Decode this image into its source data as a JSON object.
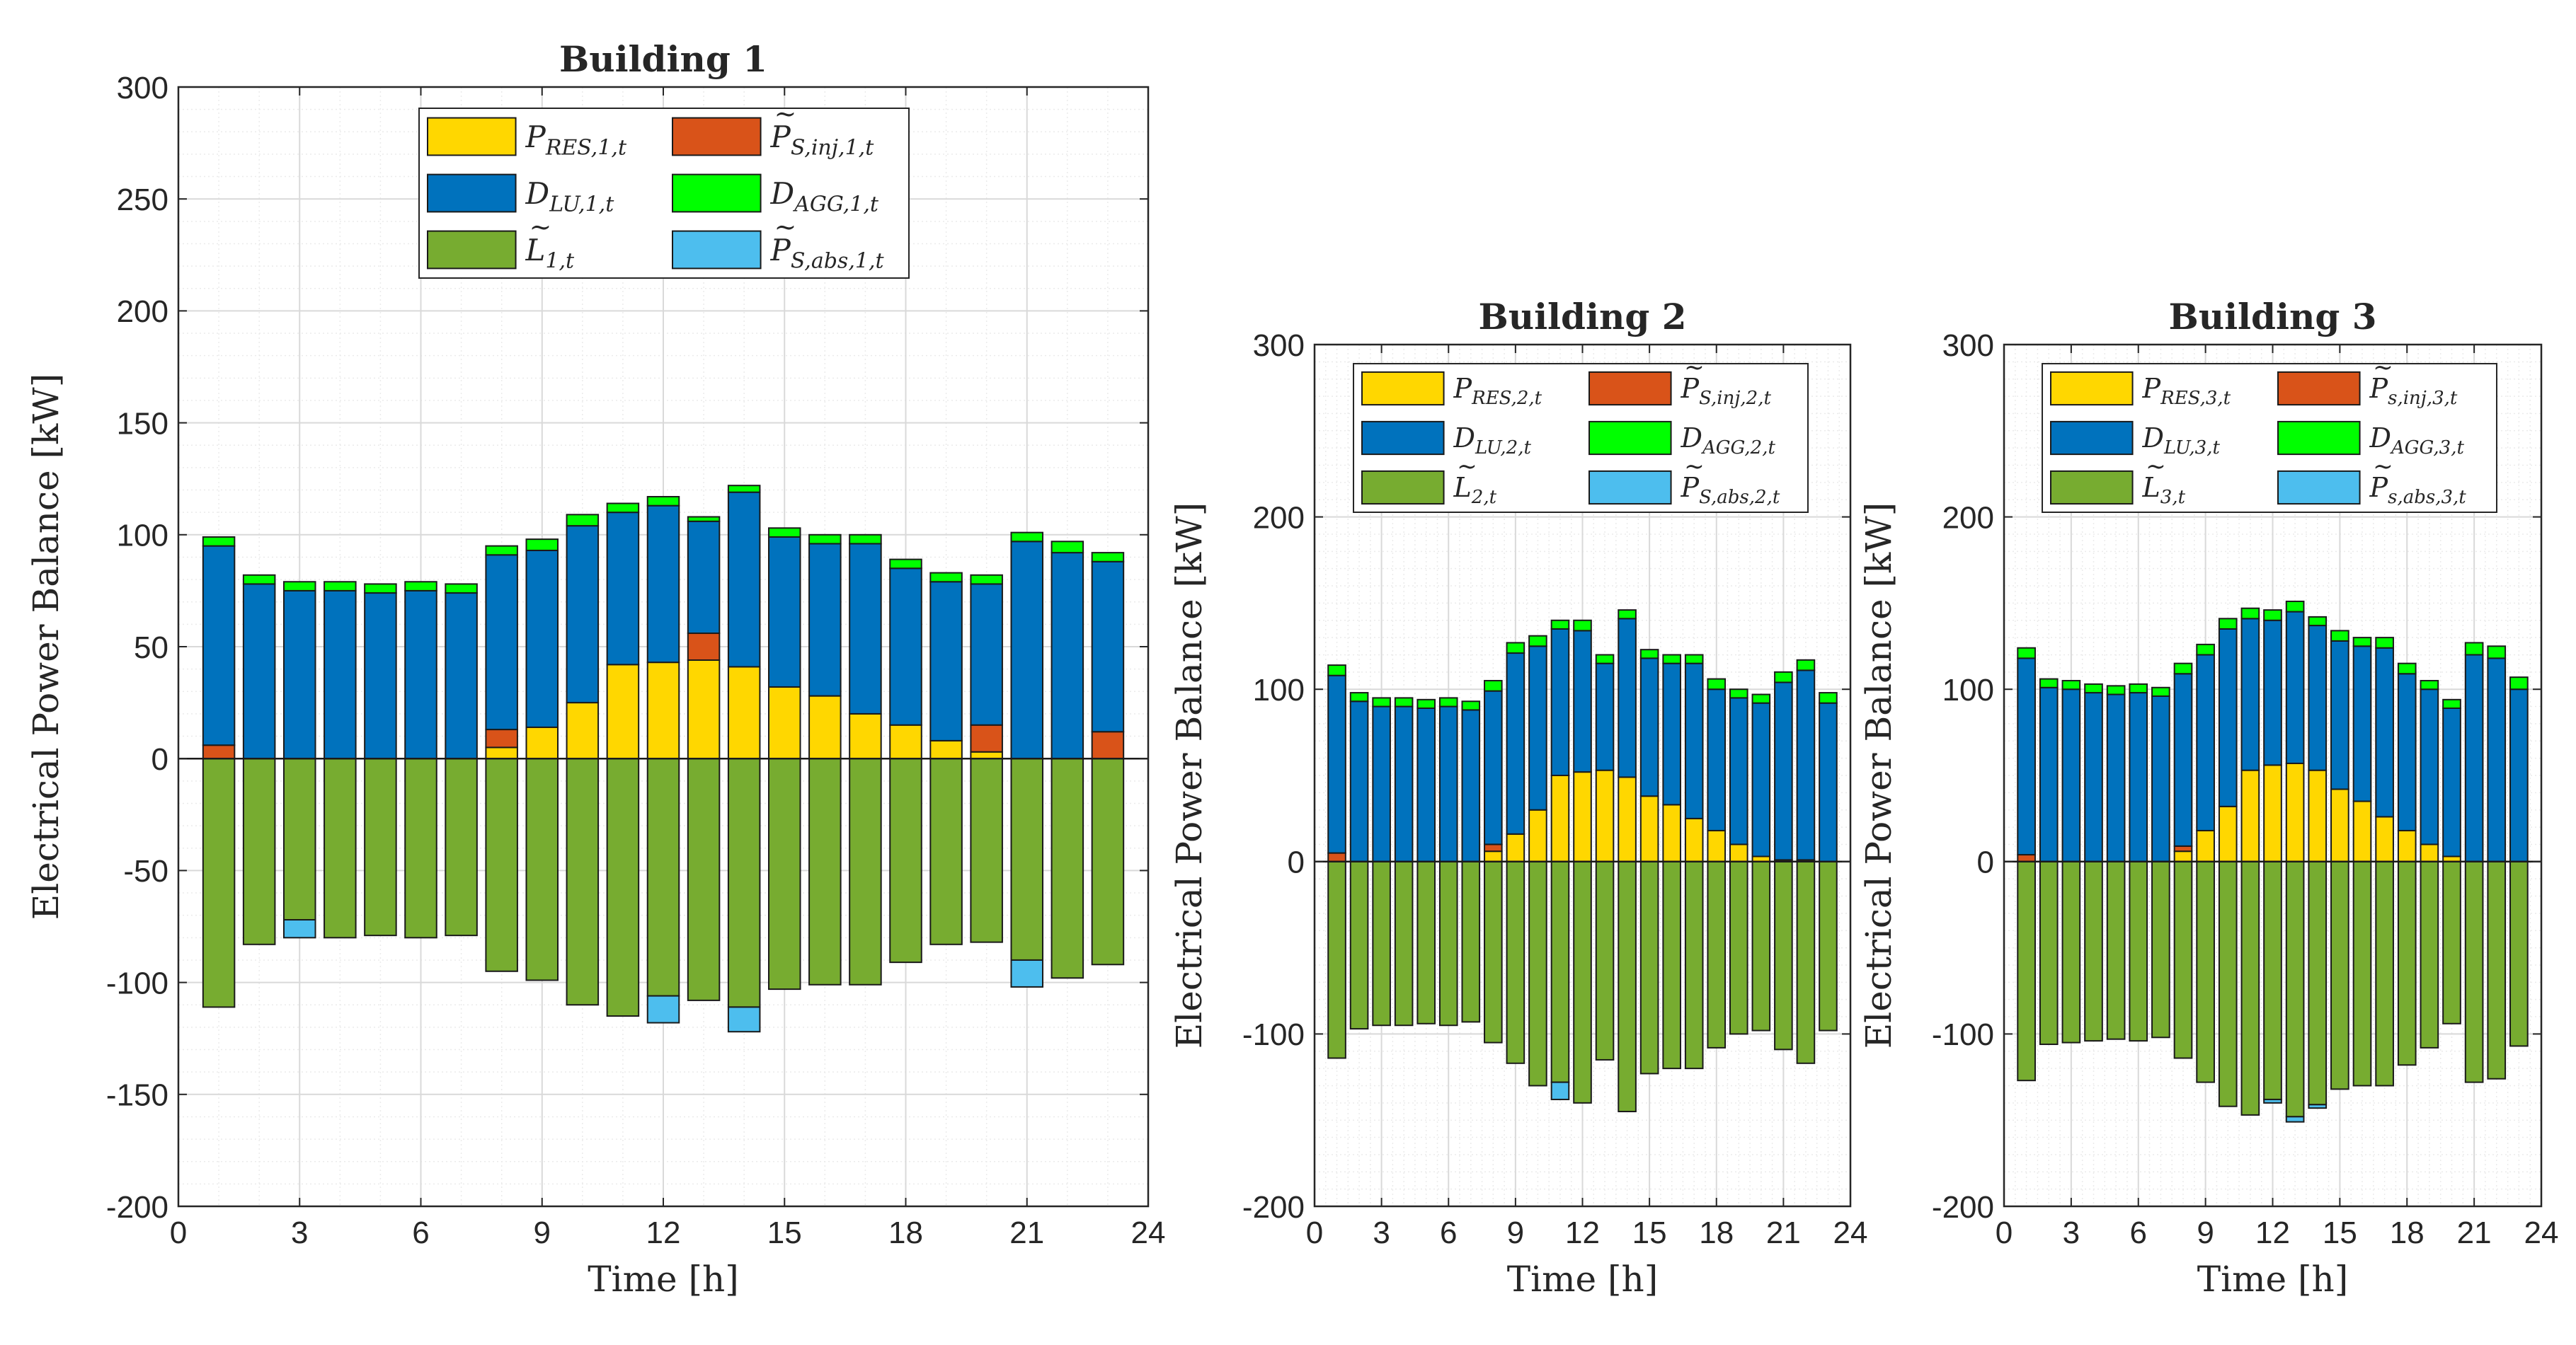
{
  "colors": {
    "res": "#FFD700",
    "inj": "#D95319",
    "dlu": "#0072BD",
    "agg": "#00FF00",
    "load": "#77AC30",
    "abs": "#4DBEEE",
    "grid": "#D9D9D9",
    "axis": "#262626"
  },
  "chart_data": [
    {
      "type": "bar",
      "stacked": true,
      "title": "Building 1",
      "xlabel": "Time [h]",
      "ylabel": "Electrical Power Balance [kW]",
      "xlim": [
        0,
        24
      ],
      "ylim": [
        -200,
        300
      ],
      "xticks": [
        0,
        3,
        6,
        9,
        12,
        15,
        18,
        21,
        24
      ],
      "yticks": [
        -200,
        -150,
        -100,
        -50,
        0,
        50,
        100,
        150,
        200,
        250,
        300
      ],
      "x": [
        1,
        2,
        3,
        4,
        5,
        6,
        7,
        8,
        9,
        10,
        11,
        12,
        13,
        14,
        15,
        16,
        17,
        18,
        19,
        20,
        21,
        22,
        23
      ],
      "grid": true,
      "legend": {
        "position": "top-center",
        "entries": [
          {
            "key": "res",
            "base": "P",
            "sub": "RES,1,t",
            "tilde": false
          },
          {
            "key": "inj",
            "base": "P",
            "sub": "S,inj,1,t",
            "tilde": true
          },
          {
            "key": "dlu",
            "base": "D",
            "sub": "LU,1,t",
            "tilde": false
          },
          {
            "key": "agg",
            "base": "D",
            "sub": "AGG,1,t",
            "tilde": false
          },
          {
            "key": "load",
            "base": "L",
            "sub": "1,t",
            "tilde": true
          },
          {
            "key": "abs",
            "base": "P",
            "sub": "S,abs,1,t",
            "tilde": true
          }
        ]
      },
      "series": [
        {
          "key": "res",
          "name": "P_RES,1,t",
          "values": [
            0,
            0,
            0,
            0,
            0,
            0,
            0,
            5,
            14,
            25,
            42,
            43,
            44,
            41,
            32,
            28,
            20,
            15,
            8,
            3,
            0,
            0,
            0
          ]
        },
        {
          "key": "inj",
          "name": "P~_S,inj,1,t",
          "values": [
            6,
            0,
            0,
            0,
            0,
            0,
            0,
            8,
            0,
            0,
            0,
            0,
            12,
            0,
            0,
            0,
            0,
            0,
            0,
            12,
            0,
            0,
            12
          ]
        },
        {
          "key": "dlu",
          "name": "D_LU,1,t",
          "values": [
            89,
            78,
            75,
            75,
            74,
            75,
            74,
            78,
            79,
            79,
            68,
            70,
            50,
            78,
            67,
            68,
            76,
            70,
            71,
            63,
            97,
            92,
            76
          ]
        },
        {
          "key": "agg",
          "name": "D_AGG,1,t",
          "values": [
            4,
            4,
            4,
            4,
            4,
            4,
            4,
            4,
            5,
            5,
            4,
            4,
            2,
            3,
            4,
            4,
            4,
            4,
            4,
            4,
            4,
            5,
            4
          ]
        },
        {
          "key": "load",
          "name": "L~_1,t",
          "values": [
            -111,
            -83,
            -72,
            -80,
            -79,
            -80,
            -79,
            -95,
            -99,
            -110,
            -115,
            -106,
            -108,
            -111,
            -103,
            -101,
            -101,
            -91,
            -83,
            -82,
            -90,
            -98,
            -92
          ]
        },
        {
          "key": "abs",
          "name": "P~_S,abs,1,t",
          "values": [
            0,
            0,
            -8,
            0,
            0,
            0,
            0,
            0,
            0,
            0,
            0,
            -12,
            0,
            -11,
            0,
            0,
            0,
            0,
            0,
            0,
            -12,
            0,
            0
          ]
        }
      ]
    },
    {
      "type": "bar",
      "stacked": true,
      "title": "Building 2",
      "xlabel": "Time [h]",
      "ylabel": "Electrical Power Balance [kW]",
      "xlim": [
        0,
        24
      ],
      "ylim": [
        -200,
        300
      ],
      "xticks": [
        0,
        3,
        6,
        9,
        12,
        15,
        18,
        21,
        24
      ],
      "yticks": [
        -200,
        -100,
        0,
        100,
        200,
        300
      ],
      "x": [
        1,
        2,
        3,
        4,
        5,
        6,
        7,
        8,
        9,
        10,
        11,
        12,
        13,
        14,
        15,
        16,
        17,
        18,
        19,
        20,
        21,
        22,
        23
      ],
      "grid": true,
      "legend": {
        "position": "top-center",
        "entries": [
          {
            "key": "res",
            "base": "P",
            "sub": "RES,2,t",
            "tilde": false
          },
          {
            "key": "inj",
            "base": "P",
            "sub": "S,inj,2,t",
            "tilde": true
          },
          {
            "key": "dlu",
            "base": "D",
            "sub": "LU,2,t",
            "tilde": false
          },
          {
            "key": "agg",
            "base": "D",
            "sub": "AGG,2,t",
            "tilde": false
          },
          {
            "key": "load",
            "base": "L",
            "sub": "2,t",
            "tilde": true
          },
          {
            "key": "abs",
            "base": "P",
            "sub": "S,abs,2,t",
            "tilde": true
          }
        ]
      },
      "series": [
        {
          "key": "res",
          "name": "P_RES,2,t",
          "values": [
            0,
            0,
            0,
            0,
            0,
            0,
            0,
            6,
            16,
            30,
            50,
            52,
            53,
            49,
            38,
            33,
            25,
            18,
            10,
            3,
            1,
            1,
            0
          ]
        },
        {
          "key": "inj",
          "name": "P~_S,inj,2,t",
          "values": [
            5,
            0,
            0,
            0,
            0,
            0,
            0,
            4,
            0,
            0,
            0,
            0,
            0,
            0,
            0,
            0,
            0,
            0,
            0,
            0,
            0,
            0,
            0
          ]
        },
        {
          "key": "dlu",
          "name": "D_LU,2,t",
          "values": [
            103,
            93,
            90,
            90,
            89,
            90,
            88,
            89,
            105,
            95,
            85,
            82,
            62,
            92,
            80,
            82,
            90,
            82,
            85,
            89,
            103,
            110,
            92
          ]
        },
        {
          "key": "agg",
          "name": "D_AGG,2,t",
          "values": [
            6,
            5,
            5,
            5,
            5,
            5,
            5,
            6,
            6,
            6,
            5,
            6,
            5,
            5,
            5,
            5,
            5,
            6,
            5,
            5,
            6,
            6,
            6
          ]
        },
        {
          "key": "load",
          "name": "L~_2,t",
          "values": [
            -114,
            -97,
            -95,
            -95,
            -94,
            -95,
            -93,
            -105,
            -117,
            -130,
            -128,
            -140,
            -115,
            -145,
            -123,
            -120,
            -120,
            -108,
            -100,
            -98,
            -109,
            -117,
            -98
          ]
        },
        {
          "key": "abs",
          "name": "P~_S,abs,2,t",
          "values": [
            0,
            0,
            0,
            0,
            0,
            0,
            0,
            0,
            0,
            0,
            -10,
            0,
            0,
            0,
            0,
            0,
            0,
            0,
            0,
            0,
            0,
            0,
            0
          ]
        }
      ]
    },
    {
      "type": "bar",
      "stacked": true,
      "title": "Building 3",
      "xlabel": "Time [h]",
      "ylabel": "Electrical Power Balance [kW]",
      "xlim": [
        0,
        24
      ],
      "ylim": [
        -200,
        300
      ],
      "xticks": [
        0,
        3,
        6,
        9,
        12,
        15,
        18,
        21,
        24
      ],
      "yticks": [
        -200,
        -100,
        0,
        100,
        200,
        300
      ],
      "x": [
        1,
        2,
        3,
        4,
        5,
        6,
        7,
        8,
        9,
        10,
        11,
        12,
        13,
        14,
        15,
        16,
        17,
        18,
        19,
        20,
        21,
        22,
        23
      ],
      "grid": true,
      "legend": {
        "position": "top-center",
        "entries": [
          {
            "key": "res",
            "base": "P",
            "sub": "RES,3,t",
            "tilde": false
          },
          {
            "key": "inj",
            "base": "P",
            "sub": "s,inj,3,t",
            "tilde": true
          },
          {
            "key": "dlu",
            "base": "D",
            "sub": "LU,3,t",
            "tilde": false
          },
          {
            "key": "agg",
            "base": "D",
            "sub": "AGG,3,t",
            "tilde": false
          },
          {
            "key": "load",
            "base": "L",
            "sub": "3,t",
            "tilde": true
          },
          {
            "key": "abs",
            "base": "P",
            "sub": "s,abs,3,t",
            "tilde": true
          }
        ]
      },
      "series": [
        {
          "key": "res",
          "name": "P_RES,3,t",
          "values": [
            0,
            0,
            0,
            0,
            0,
            0,
            0,
            6,
            18,
            32,
            53,
            56,
            57,
            53,
            42,
            35,
            26,
            18,
            10,
            3,
            0,
            0,
            0
          ]
        },
        {
          "key": "inj",
          "name": "P~_s,inj,3,t",
          "values": [
            4,
            0,
            0,
            0,
            0,
            0,
            0,
            3,
            0,
            0,
            0,
            0,
            0,
            0,
            0,
            0,
            0,
            0,
            0,
            0,
            0,
            0,
            0
          ]
        },
        {
          "key": "dlu",
          "name": "D_LU,3,t",
          "values": [
            114,
            101,
            100,
            98,
            97,
            98,
            96,
            100,
            102,
            103,
            88,
            84,
            88,
            84,
            86,
            90,
            98,
            91,
            90,
            86,
            120,
            118,
            100
          ]
        },
        {
          "key": "agg",
          "name": "D_AGG,3,t",
          "values": [
            6,
            5,
            5,
            5,
            5,
            5,
            5,
            6,
            6,
            6,
            6,
            6,
            6,
            5,
            6,
            5,
            6,
            6,
            5,
            5,
            7,
            7,
            7
          ]
        },
        {
          "key": "load",
          "name": "L~_3,t",
          "values": [
            -127,
            -106,
            -105,
            -104,
            -103,
            -104,
            -102,
            -114,
            -128,
            -142,
            -147,
            -138,
            -148,
            -141,
            -132,
            -130,
            -130,
            -118,
            -108,
            -94,
            -128,
            -126,
            -107
          ]
        },
        {
          "key": "abs",
          "name": "P~_s,abs,3,t",
          "values": [
            0,
            0,
            0,
            0,
            0,
            0,
            0,
            0,
            0,
            0,
            0,
            -2,
            -3,
            -2,
            0,
            0,
            0,
            0,
            0,
            0,
            0,
            0,
            0
          ]
        }
      ]
    }
  ]
}
